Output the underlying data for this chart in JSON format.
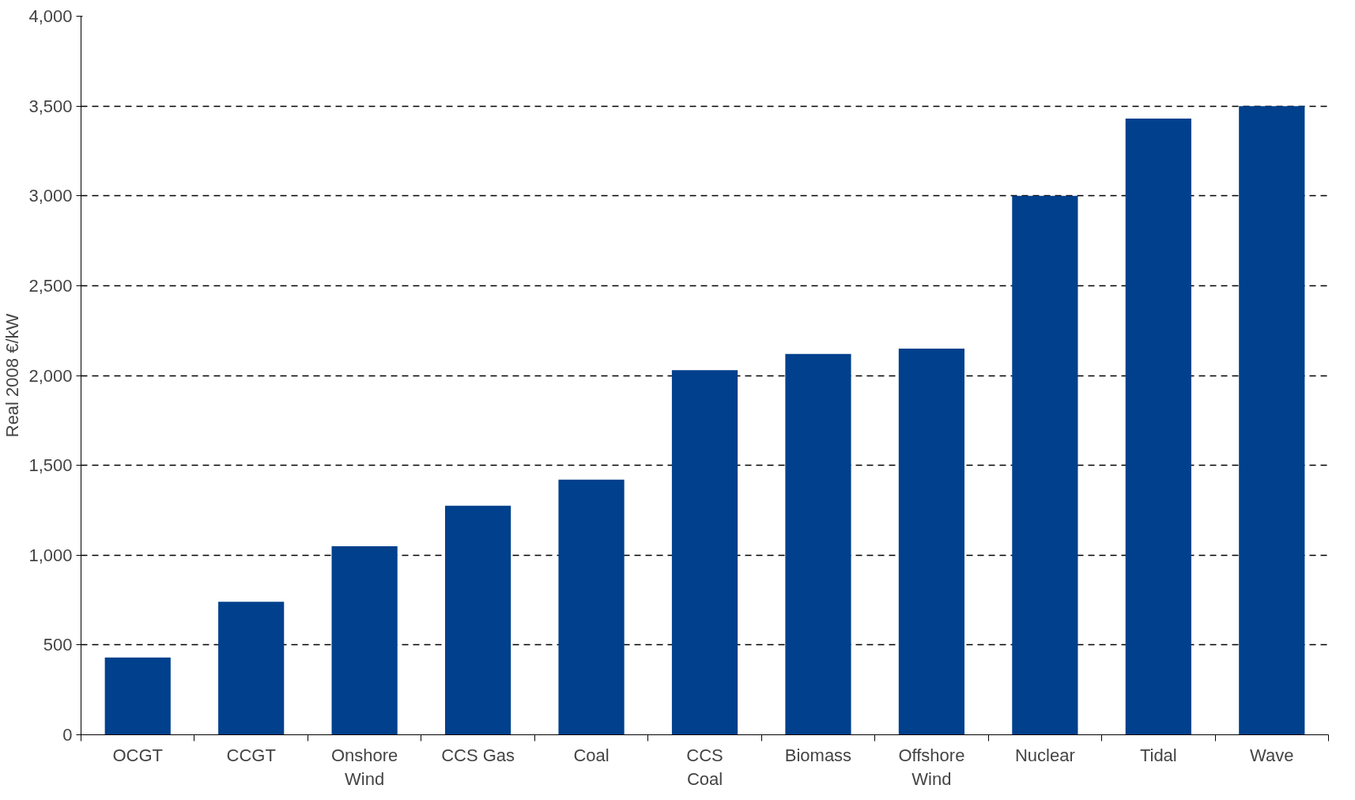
{
  "chart_data": {
    "type": "bar",
    "ylabel": "Real 2008 €/kW",
    "categories": [
      "OCGT",
      "CCGT",
      "Onshore\nWind",
      "CCS Gas",
      "Coal",
      "CCS\nCoal",
      "Biomass",
      "Offshore\nWind",
      "Nuclear",
      "Tidal",
      "Wave"
    ],
    "values": [
      430,
      740,
      1050,
      1275,
      1420,
      2030,
      2120,
      2150,
      3000,
      3430,
      3500
    ],
    "color": "#00408c",
    "ylim": [
      0,
      4000
    ],
    "yticks": [
      0,
      {
        "value": 500,
        "label": "500"
      },
      {
        "value": 1000,
        "label": "1,000"
      },
      {
        "value": 1500,
        "label": "1,500"
      },
      {
        "value": 2000,
        "label": "2,000"
      },
      {
        "value": 2500,
        "label": "2,500"
      },
      {
        "value": 3000,
        "label": "3,000"
      },
      {
        "value": 3500,
        "label": "3,500"
      },
      {
        "value": 4000,
        "label": "4,000"
      }
    ],
    "grid": "y"
  }
}
